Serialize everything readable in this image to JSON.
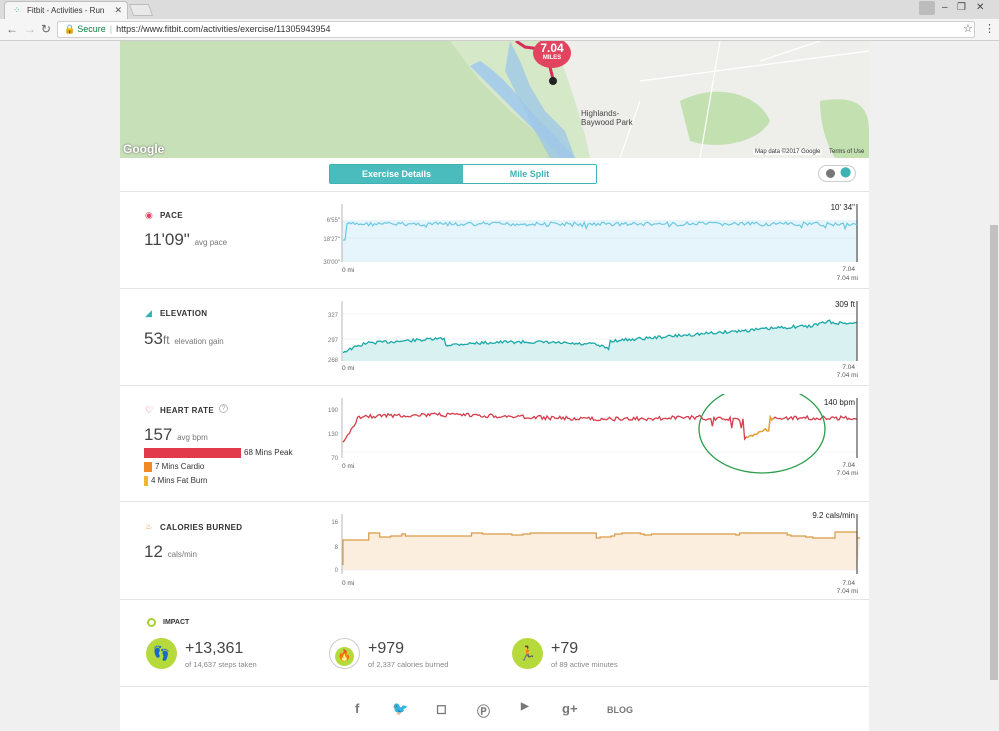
{
  "browser": {
    "tab_title": "Fitbit - Activities - Run",
    "secure_label": "Secure",
    "url": "https://www.fitbit.com/activities/exercise/11305943954"
  },
  "map": {
    "distance_value": "7.04",
    "distance_unit": "MILES",
    "park_label": "Highlands-Baywood Park",
    "credit": "Map data ©2017 Google",
    "terms": "Terms of Use",
    "logo": "Google"
  },
  "tabs": {
    "active": "Exercise Details",
    "inactive": "Mile Split"
  },
  "pace": {
    "title": "PACE",
    "value": "11'09\"",
    "unit": "avg pace",
    "yticks": [
      "6'55\"",
      "18'27\"",
      "30'00\""
    ],
    "max_label": "10' 34\"",
    "x_start": "0 mi",
    "x_end_top": "7.04",
    "x_end": "7.04 mi"
  },
  "elevation": {
    "title": "ELEVATION",
    "value": "53",
    "value_unit": "ft",
    "unit": "elevation gain",
    "yticks": [
      "327",
      "297",
      "268"
    ],
    "max_label": "309 ft",
    "x_start": "0 mi",
    "x_end_top": "7.04",
    "x_end": "7.04 mi"
  },
  "heart": {
    "title": "HEART RATE",
    "value": "157",
    "unit": "avg bpm",
    "yticks": [
      "190",
      "130",
      "70"
    ],
    "max_label": "140 bpm",
    "x_start": "0 mi",
    "x_end_top": "7.04",
    "x_end": "7.04 mi",
    "zones": [
      {
        "label": "68 Mins Peak",
        "color": "#e2394b"
      },
      {
        "label": "7 Mins Cardio",
        "color": "#f08a24"
      },
      {
        "label": "4 Mins Fat Burn",
        "color": "#f3b42f"
      }
    ]
  },
  "calories": {
    "title": "CALORIES BURNED",
    "value": "12",
    "unit": "cals/min",
    "yticks": [
      "16",
      "8",
      "0"
    ],
    "max_label": "9.2 cals/min",
    "x_start": "0 mi",
    "x_end_top": "7.04",
    "x_end": "7.04 mi"
  },
  "impact": {
    "title": "IMPACT",
    "steps_value": "+13,361",
    "steps_sub": "of 14,637 steps taken",
    "cal_value": "+979",
    "cal_sub": "of 2,337 calories burned",
    "active_value": "+79",
    "active_sub": "of 89 active minutes"
  },
  "footer": {
    "blog": "BLOG"
  },
  "colors": {
    "accent": "#4bbcbd",
    "pace_line": "#6cc8e0",
    "elevation_line": "#1aa8a8",
    "heart_line": "#d63c4c",
    "calorie_line": "#d99a46",
    "impact_green": "#b6d93c"
  }
}
